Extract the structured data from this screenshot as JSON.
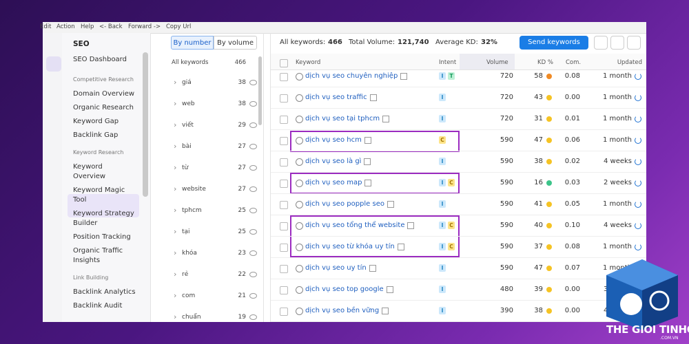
{
  "menu": [
    "Edit",
    "Action",
    "Help",
    "<- Back",
    "Forward ->",
    "Copy Url"
  ],
  "sidebar": {
    "title": "SEO",
    "dashboard": "SEO Dashboard",
    "sections": [
      {
        "heading": "Competitive Research",
        "items": [
          "Domain Overview",
          "Organic Research",
          "Keyword Gap",
          "Backlink Gap"
        ]
      },
      {
        "heading": "Keyword Research",
        "items": [
          "Keyword Overview",
          "Keyword Magic Tool",
          "Keyword Strategy Builder",
          "Position Tracking",
          "Organic Traffic Insights"
        ]
      },
      {
        "heading": "Link Building",
        "items": [
          "Backlink Analytics",
          "Backlink Audit"
        ]
      }
    ]
  },
  "groups": {
    "toggle": [
      "By number",
      "By volume"
    ],
    "header": "All keywords",
    "total": 466,
    "items": [
      {
        "name": "giá",
        "count": 38
      },
      {
        "name": "web",
        "count": 38
      },
      {
        "name": "viết",
        "count": 29
      },
      {
        "name": "bài",
        "count": 27
      },
      {
        "name": "từ",
        "count": 27
      },
      {
        "name": "website",
        "count": 27
      },
      {
        "name": "tphcm",
        "count": 25
      },
      {
        "name": "tại",
        "count": 25
      },
      {
        "name": "khóa",
        "count": 23
      },
      {
        "name": "rẻ",
        "count": 22
      },
      {
        "name": "com",
        "count": 21
      },
      {
        "name": "chuẩn",
        "count": 19
      }
    ]
  },
  "summary": {
    "all_label": "All keywords:",
    "all_value": "466",
    "volume_label": "Total Volume:",
    "volume_value": "121,740",
    "kd_label": "Average KD:",
    "kd_value": "32%",
    "button": "Send keywords"
  },
  "table": {
    "columns": [
      "Keyword",
      "Intent",
      "Volume",
      "KD %",
      "Com.",
      "Updated"
    ],
    "rows": [
      {
        "keyword": "dịch vụ seo chuyên nghiệp",
        "intent": [
          "I",
          "T"
        ],
        "volume": 720,
        "kd": 58,
        "kd_color": "#f08a24",
        "com": "0.08",
        "updated": "1 month"
      },
      {
        "keyword": "dịch vụ seo traffic",
        "intent": [
          "I"
        ],
        "volume": 720,
        "kd": 43,
        "kd_color": "#f5c324",
        "com": "0.00",
        "updated": "1 month"
      },
      {
        "keyword": "dịch vụ seo tại tphcm",
        "intent": [
          "I"
        ],
        "volume": 720,
        "kd": 31,
        "kd_color": "#f5c324",
        "com": "0.01",
        "updated": "1 month"
      },
      {
        "keyword": "dịch vụ seo hcm",
        "intent": [
          "C"
        ],
        "volume": 590,
        "kd": 47,
        "kd_color": "#f5c324",
        "com": "0.06",
        "updated": "1 month"
      },
      {
        "keyword": "dịch vụ seo là gì",
        "intent": [
          "I"
        ],
        "volume": 590,
        "kd": 38,
        "kd_color": "#f5c324",
        "com": "0.02",
        "updated": "4 weeks"
      },
      {
        "keyword": "dịch vụ seo map",
        "intent": [
          "I",
          "C"
        ],
        "volume": 590,
        "kd": 16,
        "kd_color": "#3cc48a",
        "com": "0.03",
        "updated": "2 weeks"
      },
      {
        "keyword": "dịch vụ seo popple seo",
        "intent": [
          "I"
        ],
        "volume": 590,
        "kd": 41,
        "kd_color": "#f5c324",
        "com": "0.05",
        "updated": "1 month"
      },
      {
        "keyword": "dịch vụ seo tổng thể website",
        "intent": [
          "I",
          "C"
        ],
        "volume": 590,
        "kd": 40,
        "kd_color": "#f5c324",
        "com": "0.10",
        "updated": "4 weeks"
      },
      {
        "keyword": "dịch vụ seo từ khóa uy tín",
        "intent": [
          "I",
          "C"
        ],
        "volume": 590,
        "kd": 37,
        "kd_color": "#f5c324",
        "com": "0.08",
        "updated": "1 month"
      },
      {
        "keyword": "dịch vụ seo uy tín",
        "intent": [
          "I"
        ],
        "volume": 590,
        "kd": 47,
        "kd_color": "#f5c324",
        "com": "0.07",
        "updated": "1 month"
      },
      {
        "keyword": "dịch vụ seo top google",
        "intent": [
          "I"
        ],
        "volume": 480,
        "kd": 39,
        "kd_color": "#f5c324",
        "com": "0.00",
        "updated": "3 weeks"
      },
      {
        "keyword": "dịch vụ seo bền vững",
        "intent": [
          "I"
        ],
        "volume": 390,
        "kd": 38,
        "kd_color": "#f5c324",
        "com": "0.00",
        "updated": "4 weeks"
      }
    ]
  },
  "logo": {
    "name": "THE GIOI TINHOC",
    "domain": ".COM.VN"
  }
}
